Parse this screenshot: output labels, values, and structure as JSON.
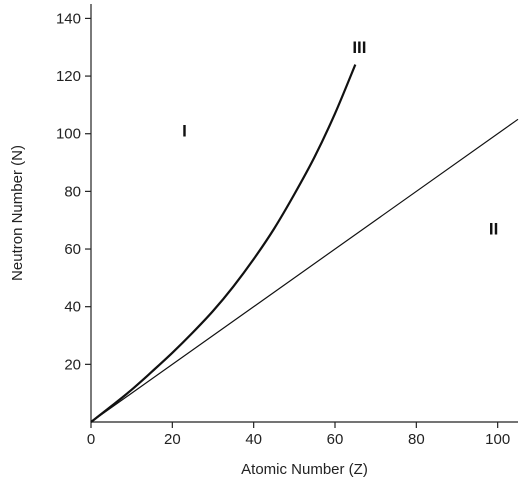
{
  "chart_data": {
    "type": "line",
    "title": "",
    "xlabel": "Atomic Number (Z)",
    "ylabel": "Neutron Number (N)",
    "xlim": [
      0,
      105
    ],
    "ylim": [
      0,
      145
    ],
    "x_ticks": [
      0,
      20,
      40,
      60,
      80,
      100
    ],
    "y_ticks": [
      20,
      40,
      60,
      80,
      100,
      120,
      140
    ],
    "grid": false,
    "series": [
      {
        "x": [
          0,
          5,
          10,
          15,
          20,
          25,
          30,
          35,
          40,
          45,
          50,
          55,
          60,
          65
        ],
        "y": [
          0,
          5.5,
          11.2,
          17.5,
          24,
          31,
          38.5,
          47,
          56.5,
          67,
          79,
          92,
          107,
          124
        ]
      },
      {
        "x": [
          0,
          105
        ],
        "y": [
          0,
          105
        ]
      }
    ],
    "annotations": [
      {
        "text": "I",
        "x": 23,
        "y": 99
      },
      {
        "text": "II",
        "x": 99,
        "y": 65
      },
      {
        "text": "III",
        "x": 66,
        "y": 128
      }
    ]
  }
}
